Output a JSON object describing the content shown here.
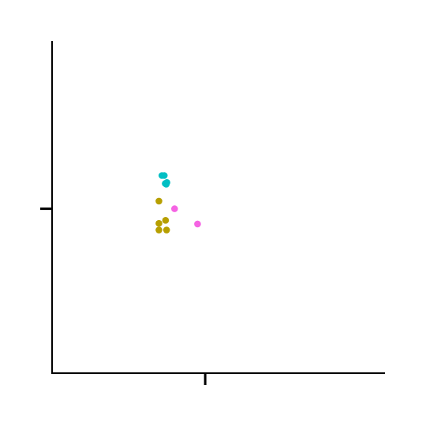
{
  "chart_data": {
    "type": "scatter",
    "title": "",
    "xlabel": "",
    "ylabel": "",
    "xlim": [
      0,
      1
    ],
    "ylim": [
      0,
      1
    ],
    "grid": false,
    "x_ticks": [
      0.46
    ],
    "y_ticks": [
      0.495
    ],
    "series": [
      {
        "color": "#00bfc4",
        "points": [
          {
            "x": 0.33,
            "y": 0.595
          },
          {
            "x": 0.337,
            "y": 0.595
          },
          {
            "x": 0.34,
            "y": 0.571
          },
          {
            "x": 0.343,
            "y": 0.569
          },
          {
            "x": 0.345,
            "y": 0.574
          }
        ]
      },
      {
        "color": "#b79f00",
        "points": [
          {
            "x": 0.321,
            "y": 0.518
          },
          {
            "x": 0.321,
            "y": 0.451
          },
          {
            "x": 0.321,
            "y": 0.431
          },
          {
            "x": 0.341,
            "y": 0.46
          },
          {
            "x": 0.344,
            "y": 0.431
          }
        ]
      },
      {
        "color": "#f564e3",
        "points": [
          {
            "x": 0.368,
            "y": 0.495
          },
          {
            "x": 0.437,
            "y": 0.449
          }
        ]
      }
    ]
  }
}
